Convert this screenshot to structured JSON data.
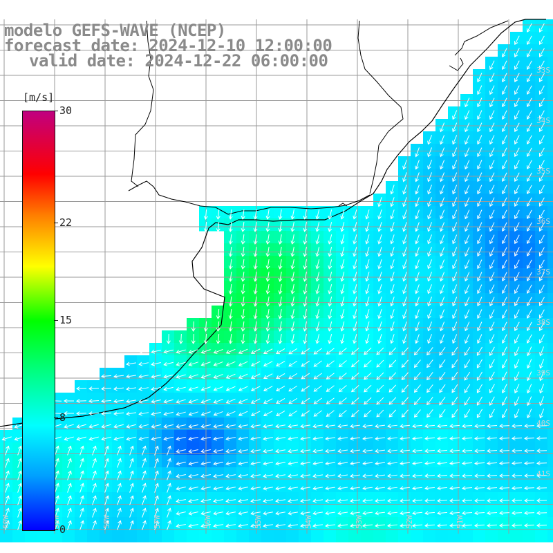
{
  "title": {
    "line1": "modelo GEFS-WAVE (NCEP)",
    "line2": "forecast date: 2024-12-10 12:00:00",
    "line3": "valid date: 2024-12-22 06:00:00"
  },
  "colorbar": {
    "unit": "[m/s]",
    "labels": [
      "30",
      "22",
      "15",
      "8",
      "0"
    ],
    "values": [
      30,
      22,
      15,
      8,
      0
    ],
    "vmin": 0,
    "vmax": 30
  },
  "map": {
    "lat_labels": [
      "33S",
      "34S",
      "35S",
      "36S",
      "37S",
      "38S",
      "39S",
      "40S",
      "41S"
    ],
    "lon_labels": [
      "60W",
      "59W",
      "58W",
      "57W",
      "56W",
      "55W",
      "54W",
      "53W",
      "52W",
      "51W"
    ],
    "colors": {
      "land": "#ffffff",
      "grid": "#9a9a9a",
      "coast": "#000000",
      "arrows": "#ffffff"
    }
  }
}
